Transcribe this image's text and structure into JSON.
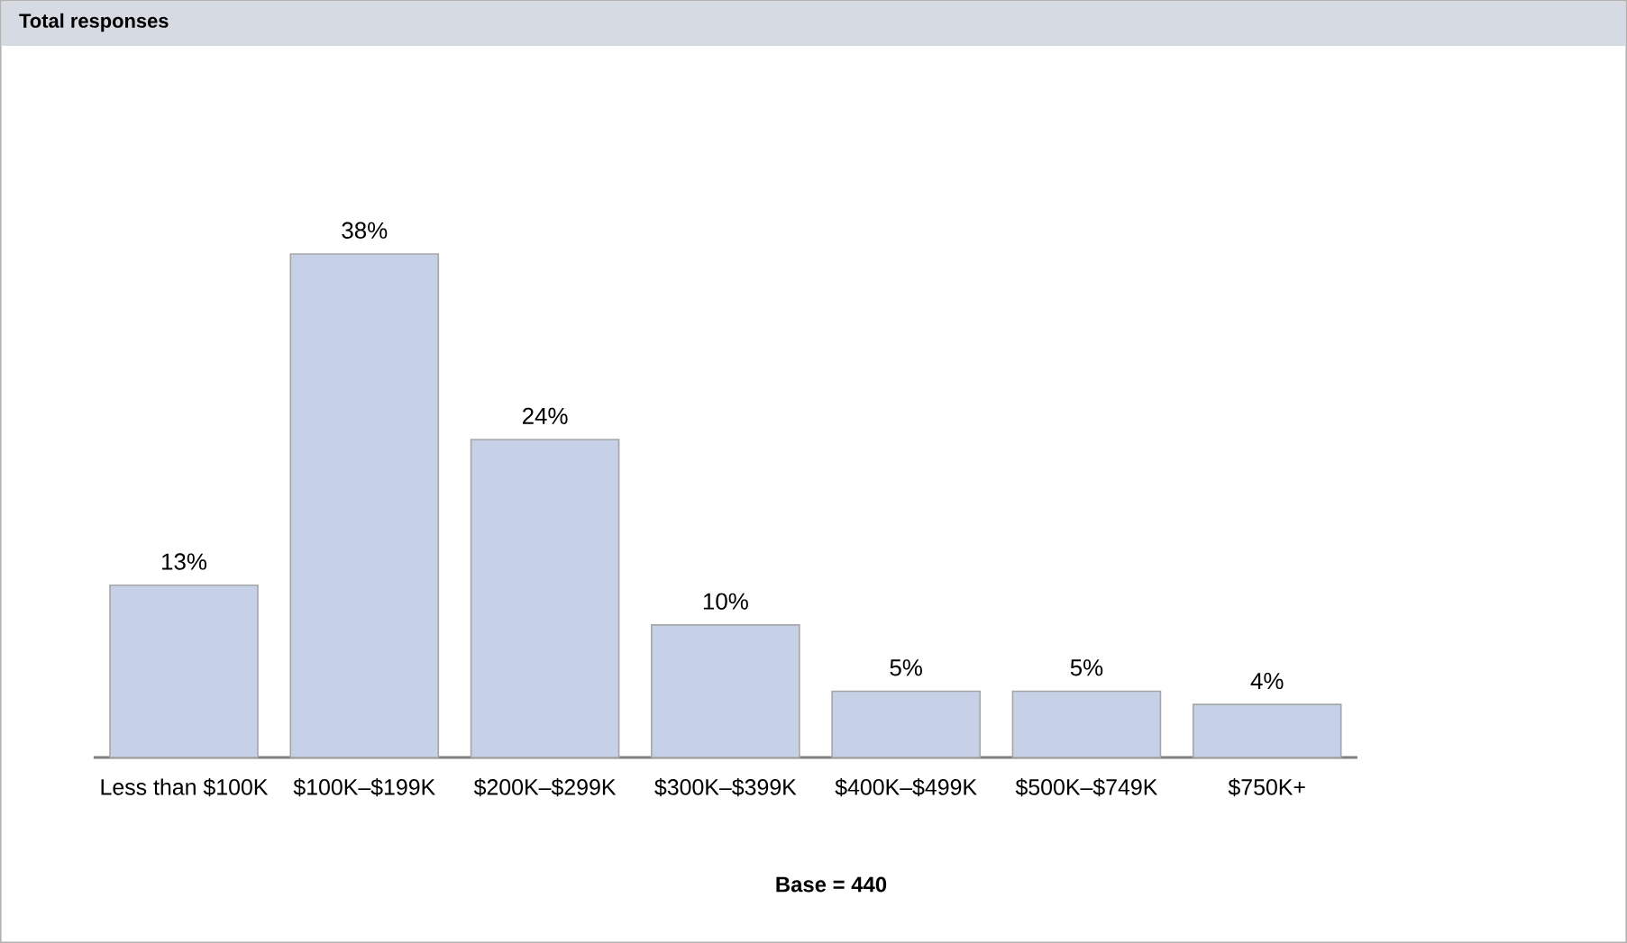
{
  "chart_data": {
    "type": "bar",
    "title": "Total responses",
    "categories": [
      "Less than $100K",
      "$100K–$199K",
      "$200K–$299K",
      "$300K–$399K",
      "$400K–$499K",
      "$500K–$749K",
      "$750K+"
    ],
    "values": [
      13,
      38,
      24,
      10,
      5,
      5,
      4
    ],
    "value_labels": [
      "13%",
      "38%",
      "24%",
      "10%",
      "5%",
      "5%",
      "4%"
    ],
    "color": "#c6d0e6",
    "annotations": [
      "Base = 440"
    ]
  }
}
